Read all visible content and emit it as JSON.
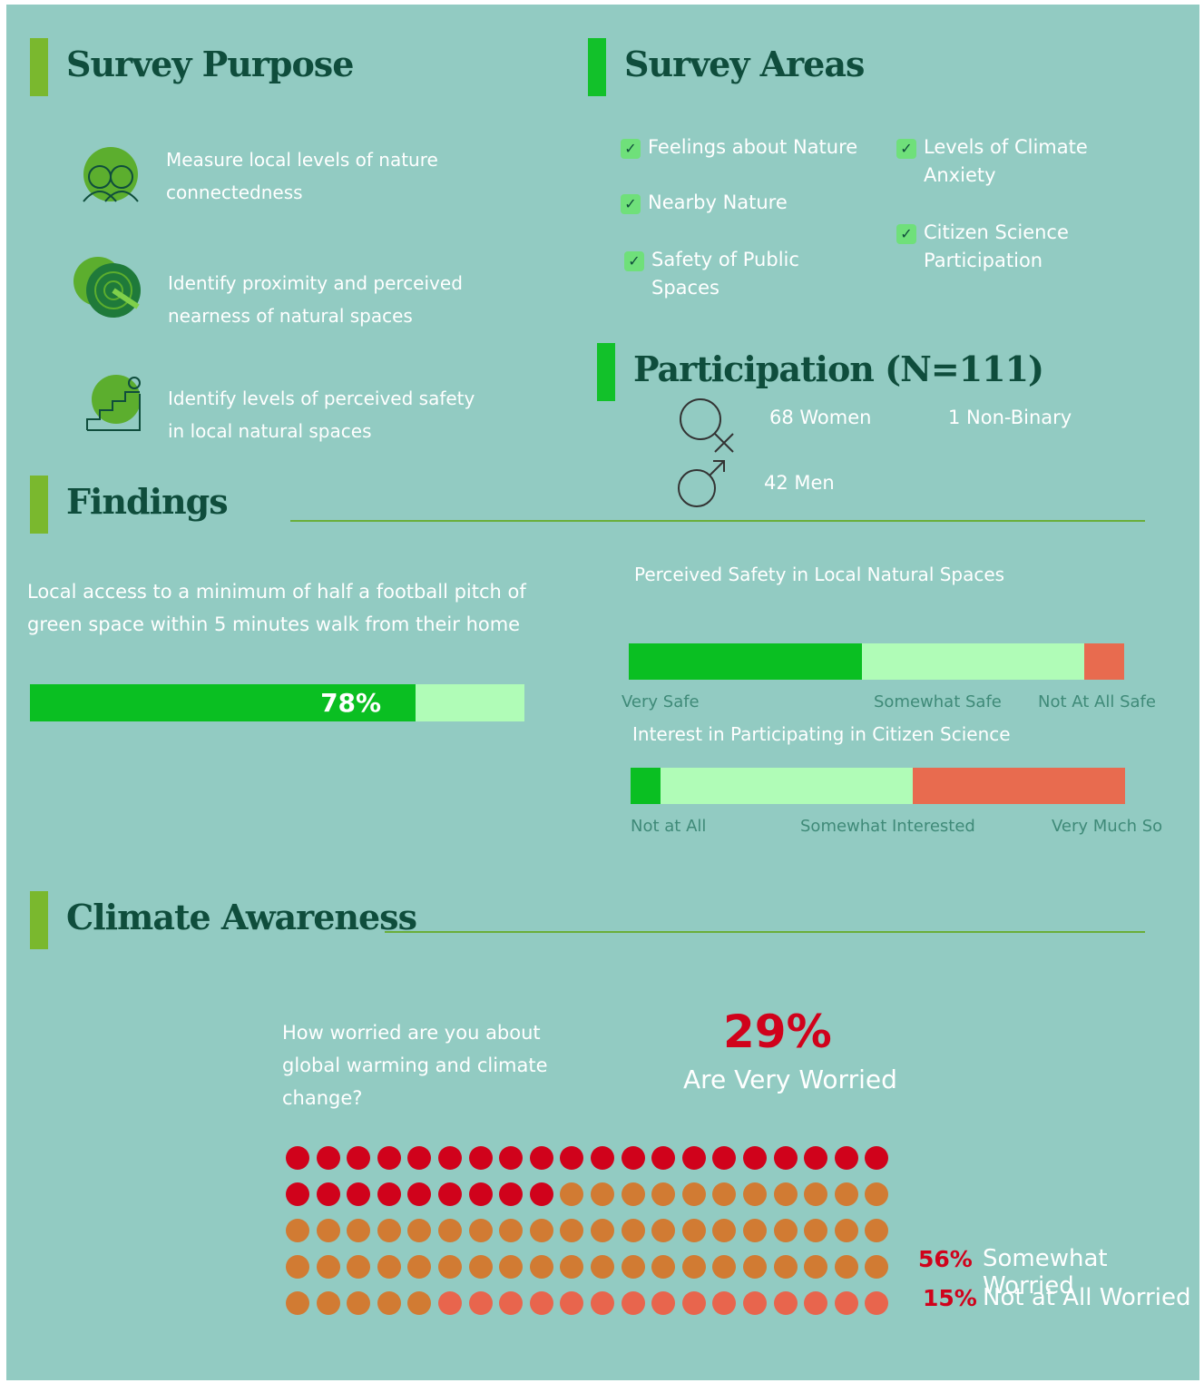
{
  "survey_purpose": {
    "title": "Survey Purpose",
    "items": [
      "Measure local levels of nature connectedness",
      "Identify proximity and perceived nearness of natural spaces",
      "Identify levels of perceived safety in local natural spaces"
    ]
  },
  "survey_areas": {
    "title": "Survey Areas",
    "items": [
      "Feelings about Nature",
      "Levels of Climate Anxiety",
      "Nearby Nature",
      "Citizen Science Participation",
      "Safety of Public Spaces"
    ]
  },
  "participation": {
    "title": "Participation (N=111)",
    "items": [
      "68 Women",
      "1 Non-Binary",
      "42 Men"
    ]
  },
  "findings": {
    "title": "Findings",
    "green_space": {
      "text": "Local access to a minimum of half a football pitch of green space within 5 minutes walk from their home",
      "value": 78,
      "value_label": "78%",
      "xlim": [
        0,
        100
      ],
      "color": "#0abf22",
      "rest_color": "#b0fcb7"
    },
    "safety": {
      "title": "Perceived Safety in Local Natural Spaces",
      "xlim": [
        0,
        100
      ],
      "segments": [
        {
          "name": "Very Safe",
          "value": 47,
          "color": "#0abf22"
        },
        {
          "name": "Somewhat Safe",
          "value": 45,
          "color": "#b0fcb7"
        },
        {
          "name": "Not At All Safe",
          "value": 8,
          "color": "#e86b4f"
        }
      ]
    },
    "citizen_science": {
      "title": "Interest in Participating in Citizen Science",
      "xlim": [
        0,
        100
      ],
      "segments": [
        {
          "name": "Not at All",
          "value": 6,
          "color": "#0abf22"
        },
        {
          "name": "Somewhat Interested",
          "value": 51,
          "color": "#b0fcb7"
        },
        {
          "name": "Very Much So",
          "value": 43,
          "color": "#e86b4f"
        }
      ]
    }
  },
  "climate": {
    "title": "Climate Awareness",
    "question": "How worried are you about global warming and climate change?",
    "groups": [
      {
        "name": "Are Very Worried",
        "value": 29,
        "value_label": "29%",
        "color": "#d0021b"
      },
      {
        "name": "Somewhat Worried",
        "value": 56,
        "value_label": "56%",
        "color": "#d17b33"
      },
      {
        "name": "Not at All Worried",
        "value": 15,
        "value_label": "15%",
        "color": "#e8654d"
      }
    ]
  }
}
